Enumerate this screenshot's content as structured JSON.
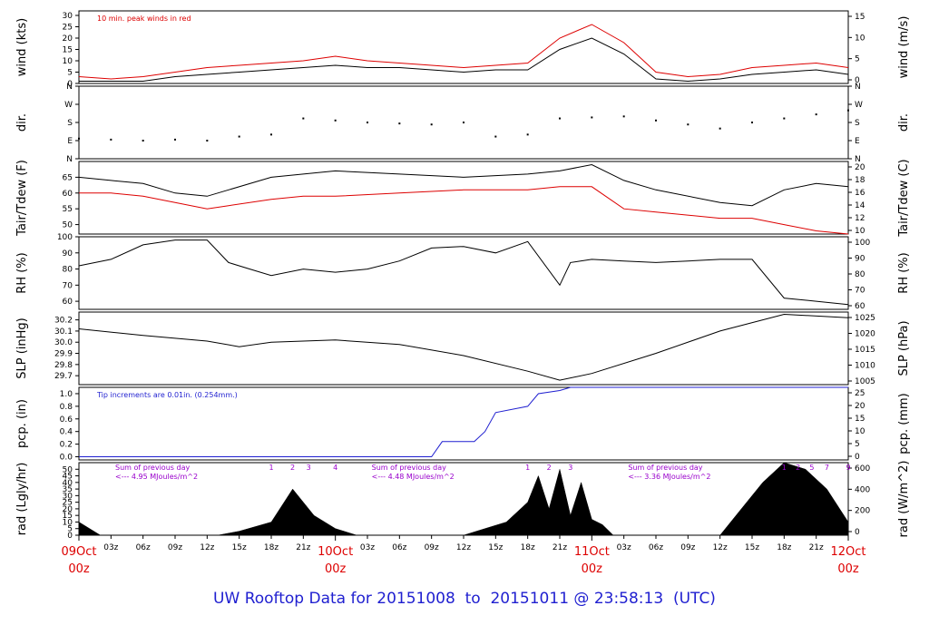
{
  "footer": {
    "title": "UW Rooftop Data for 20151008  to  20151011 @ 23:58:13  (UTC)"
  },
  "chart_data": [
    {
      "type": "line",
      "panel": "wind",
      "ylabel_left": "wind (kts)",
      "ylabel_right": "wind (m/s)",
      "ylim": [
        0,
        32
      ],
      "left_ticks": [
        0,
        5,
        10,
        15,
        20,
        25,
        30
      ],
      "right_ticks": [
        0,
        5,
        10,
        15
      ],
      "annotation": "10 min. peak winds in red",
      "annotation_color": "#dd0000",
      "series": [
        {
          "color": "#000000",
          "x": [
            0,
            3,
            6,
            9,
            12,
            15,
            18,
            21,
            24,
            27,
            30,
            33,
            36,
            39,
            42,
            45,
            48,
            51,
            54,
            57,
            60,
            63,
            66,
            69,
            72
          ],
          "y": [
            1,
            1,
            1,
            3,
            4,
            5,
            6,
            7,
            8,
            7,
            7,
            6,
            5,
            6,
            6,
            15,
            20,
            13,
            2,
            1,
            2,
            4,
            5,
            6,
            4
          ]
        },
        {
          "color": "#dd0000",
          "x": [
            0,
            3,
            6,
            9,
            12,
            15,
            18,
            21,
            24,
            27,
            30,
            33,
            36,
            39,
            42,
            45,
            48,
            51,
            54,
            57,
            60,
            63,
            66,
            69,
            72
          ],
          "y": [
            3,
            2,
            3,
            5,
            7,
            8,
            9,
            10,
            12,
            10,
            9,
            8,
            7,
            8,
            9,
            20,
            26,
            18,
            5,
            3,
            4,
            7,
            8,
            9,
            7
          ]
        }
      ]
    },
    {
      "type": "scatter",
      "panel": "dir",
      "ylabel_left": "dir.",
      "ylabel_right": "dir.",
      "ylim": [
        0,
        360
      ],
      "tick_labels": [
        "N",
        "E",
        "S",
        "W",
        "N"
      ],
      "series": [
        {
          "color": "#000000",
          "x": [
            0,
            3,
            6,
            9,
            12,
            15,
            18,
            21,
            24,
            27,
            30,
            33,
            36,
            39,
            42,
            45,
            48,
            51,
            54,
            57,
            60,
            63,
            66,
            69,
            72
          ],
          "y": [
            100,
            95,
            90,
            95,
            90,
            110,
            120,
            200,
            190,
            180,
            175,
            170,
            180,
            110,
            120,
            200,
            205,
            210,
            190,
            170,
            150,
            180,
            200,
            220,
            240
          ]
        }
      ]
    },
    {
      "type": "line",
      "panel": "temp",
      "ylabel_left": "Tair/Tdew (F)",
      "ylabel_right": "Tair/Tdew (C)",
      "ylim": [
        47,
        70
      ],
      "left_ticks": [
        50,
        55,
        60,
        65
      ],
      "right_ticks": [
        10,
        12,
        14,
        16,
        18,
        20
      ],
      "series": [
        {
          "color": "#000000",
          "x": [
            0,
            3,
            6,
            9,
            12,
            14,
            18,
            21,
            24,
            30,
            36,
            42,
            45,
            48,
            51,
            54,
            60,
            63,
            66,
            69,
            72
          ],
          "y": [
            65,
            64,
            63,
            60,
            59,
            61,
            65,
            66,
            67,
            66,
            65,
            66,
            67,
            69,
            64,
            61,
            57,
            56,
            61,
            63,
            62
          ]
        },
        {
          "color": "#dd0000",
          "x": [
            0,
            3,
            6,
            9,
            12,
            14,
            18,
            21,
            24,
            30,
            36,
            42,
            45,
            48,
            51,
            54,
            60,
            63,
            66,
            69,
            72
          ],
          "y": [
            60,
            60,
            59,
            57,
            55,
            56,
            58,
            59,
            59,
            60,
            61,
            61,
            62,
            62,
            55,
            54,
            52,
            52,
            50,
            48,
            47
          ]
        }
      ]
    },
    {
      "type": "line",
      "panel": "rh",
      "ylabel_left": "RH (%)",
      "ylabel_right": "RH (%)",
      "ylim": [
        55,
        100
      ],
      "left_ticks": [
        60,
        70,
        80,
        90,
        100
      ],
      "right_ticks": [
        60,
        70,
        80,
        90,
        100
      ],
      "series": [
        {
          "color": "#000000",
          "x": [
            0,
            3,
            6,
            9,
            12,
            14,
            16,
            18,
            21,
            24,
            27,
            30,
            33,
            36,
            39,
            42,
            45,
            46,
            48,
            51,
            54,
            57,
            60,
            63,
            66,
            69,
            72
          ],
          "y": [
            82,
            86,
            95,
            98,
            98,
            84,
            80,
            76,
            80,
            78,
            80,
            85,
            93,
            94,
            90,
            97,
            70,
            84,
            86,
            85,
            84,
            85,
            86,
            86,
            62,
            60,
            58
          ]
        }
      ]
    },
    {
      "type": "line",
      "panel": "slp",
      "ylabel_left": "SLP (inHg)",
      "ylabel_right": "SLP (hPa)",
      "ylim": [
        29.62,
        30.27
      ],
      "left_ticks": [
        29.7,
        29.8,
        29.9,
        30.0,
        30.1,
        30.2
      ],
      "right_ticks": [
        1005,
        1010,
        1015,
        1020,
        1025
      ],
      "series": [
        {
          "color": "#000000",
          "x": [
            0,
            6,
            12,
            15,
            18,
            24,
            30,
            36,
            42,
            45,
            48,
            54,
            60,
            66,
            72
          ],
          "y": [
            30.12,
            30.06,
            30.01,
            29.96,
            30.0,
            30.02,
            29.98,
            29.88,
            29.74,
            29.66,
            29.72,
            29.9,
            30.1,
            30.25,
            30.22
          ]
        }
      ]
    },
    {
      "type": "line",
      "panel": "pcp",
      "ylabel_left": "pcp. (in)",
      "ylabel_right": "pcp. (mm)",
      "ylim": [
        -0.05,
        1.1
      ],
      "left_ticks": [
        0.0,
        0.2,
        0.4,
        0.6,
        0.8,
        1.0
      ],
      "right_ticks": [
        0,
        5,
        10,
        15,
        20,
        25
      ],
      "annotation": "Tip increments are 0.01in. (0.254mm.)",
      "annotation_color": "#1f1fd0",
      "series": [
        {
          "color": "#1f1fd0",
          "x": [
            0,
            33,
            34,
            37,
            38,
            39,
            42,
            43,
            45,
            46,
            47,
            48,
            60,
            72
          ],
          "y": [
            0,
            0,
            0.24,
            0.24,
            0.4,
            0.7,
            0.8,
            1.0,
            1.05,
            1.1,
            1.1,
            1.1,
            1.1,
            1.1
          ]
        }
      ]
    },
    {
      "type": "area",
      "panel": "rad",
      "ylabel_left": "rad (Lgly/hr)",
      "ylabel_right": "rad (W/m^2)",
      "ylim": [
        0,
        55
      ],
      "left_ticks": [
        0,
        5,
        10,
        15,
        20,
        25,
        30,
        35,
        40,
        45,
        50
      ],
      "right_ticks": [
        0,
        200,
        400,
        600
      ],
      "annotations": [
        {
          "text": "Sum of previous day",
          "day": 1
        },
        {
          "text": "<--- 4.95 MJoules/m^2",
          "day": 1
        },
        {
          "text": "Sum of previous day",
          "day": 2
        },
        {
          "text": "<--- 4.48 MJoules/m^2",
          "day": 2
        },
        {
          "text": "Sum of previous day",
          "day": 3
        },
        {
          "text": "<--- 3.36 MJoules/m^2",
          "day": 3
        }
      ],
      "hour_markers": [
        "1",
        "2",
        "3",
        "4",
        "1",
        "2",
        "3",
        "1",
        "2",
        "5",
        "7",
        "9"
      ],
      "series": [
        {
          "color": "#000000",
          "x": [
            0,
            2,
            13,
            15,
            18,
            20,
            22,
            24,
            26,
            36,
            38,
            40,
            42,
            43,
            44,
            45,
            46,
            47,
            48,
            49,
            50,
            60,
            62,
            64,
            66,
            68,
            70,
            72
          ],
          "y": [
            10,
            0,
            0,
            3,
            10,
            35,
            15,
            5,
            0,
            0,
            5,
            10,
            25,
            45,
            20,
            50,
            15,
            40,
            12,
            8,
            0,
            0,
            20,
            40,
            55,
            50,
            35,
            10
          ]
        }
      ]
    }
  ],
  "x_axis": {
    "hour_labels": [
      "03z",
      "06z",
      "09z",
      "12z",
      "15z",
      "18z",
      "21z",
      "03z",
      "06z",
      "09z",
      "12z",
      "15z",
      "18z",
      "21z",
      "03z",
      "06z",
      "09z",
      "12z",
      "15z",
      "18z",
      "21z"
    ],
    "day_labels": [
      {
        "date": "09Oct",
        "time": "00z"
      },
      {
        "date": "10Oct",
        "time": "00z"
      },
      {
        "date": "11Oct",
        "time": "00z"
      },
      {
        "date": "12Oct",
        "time": "00z"
      }
    ],
    "day_color": "#dd0000"
  }
}
